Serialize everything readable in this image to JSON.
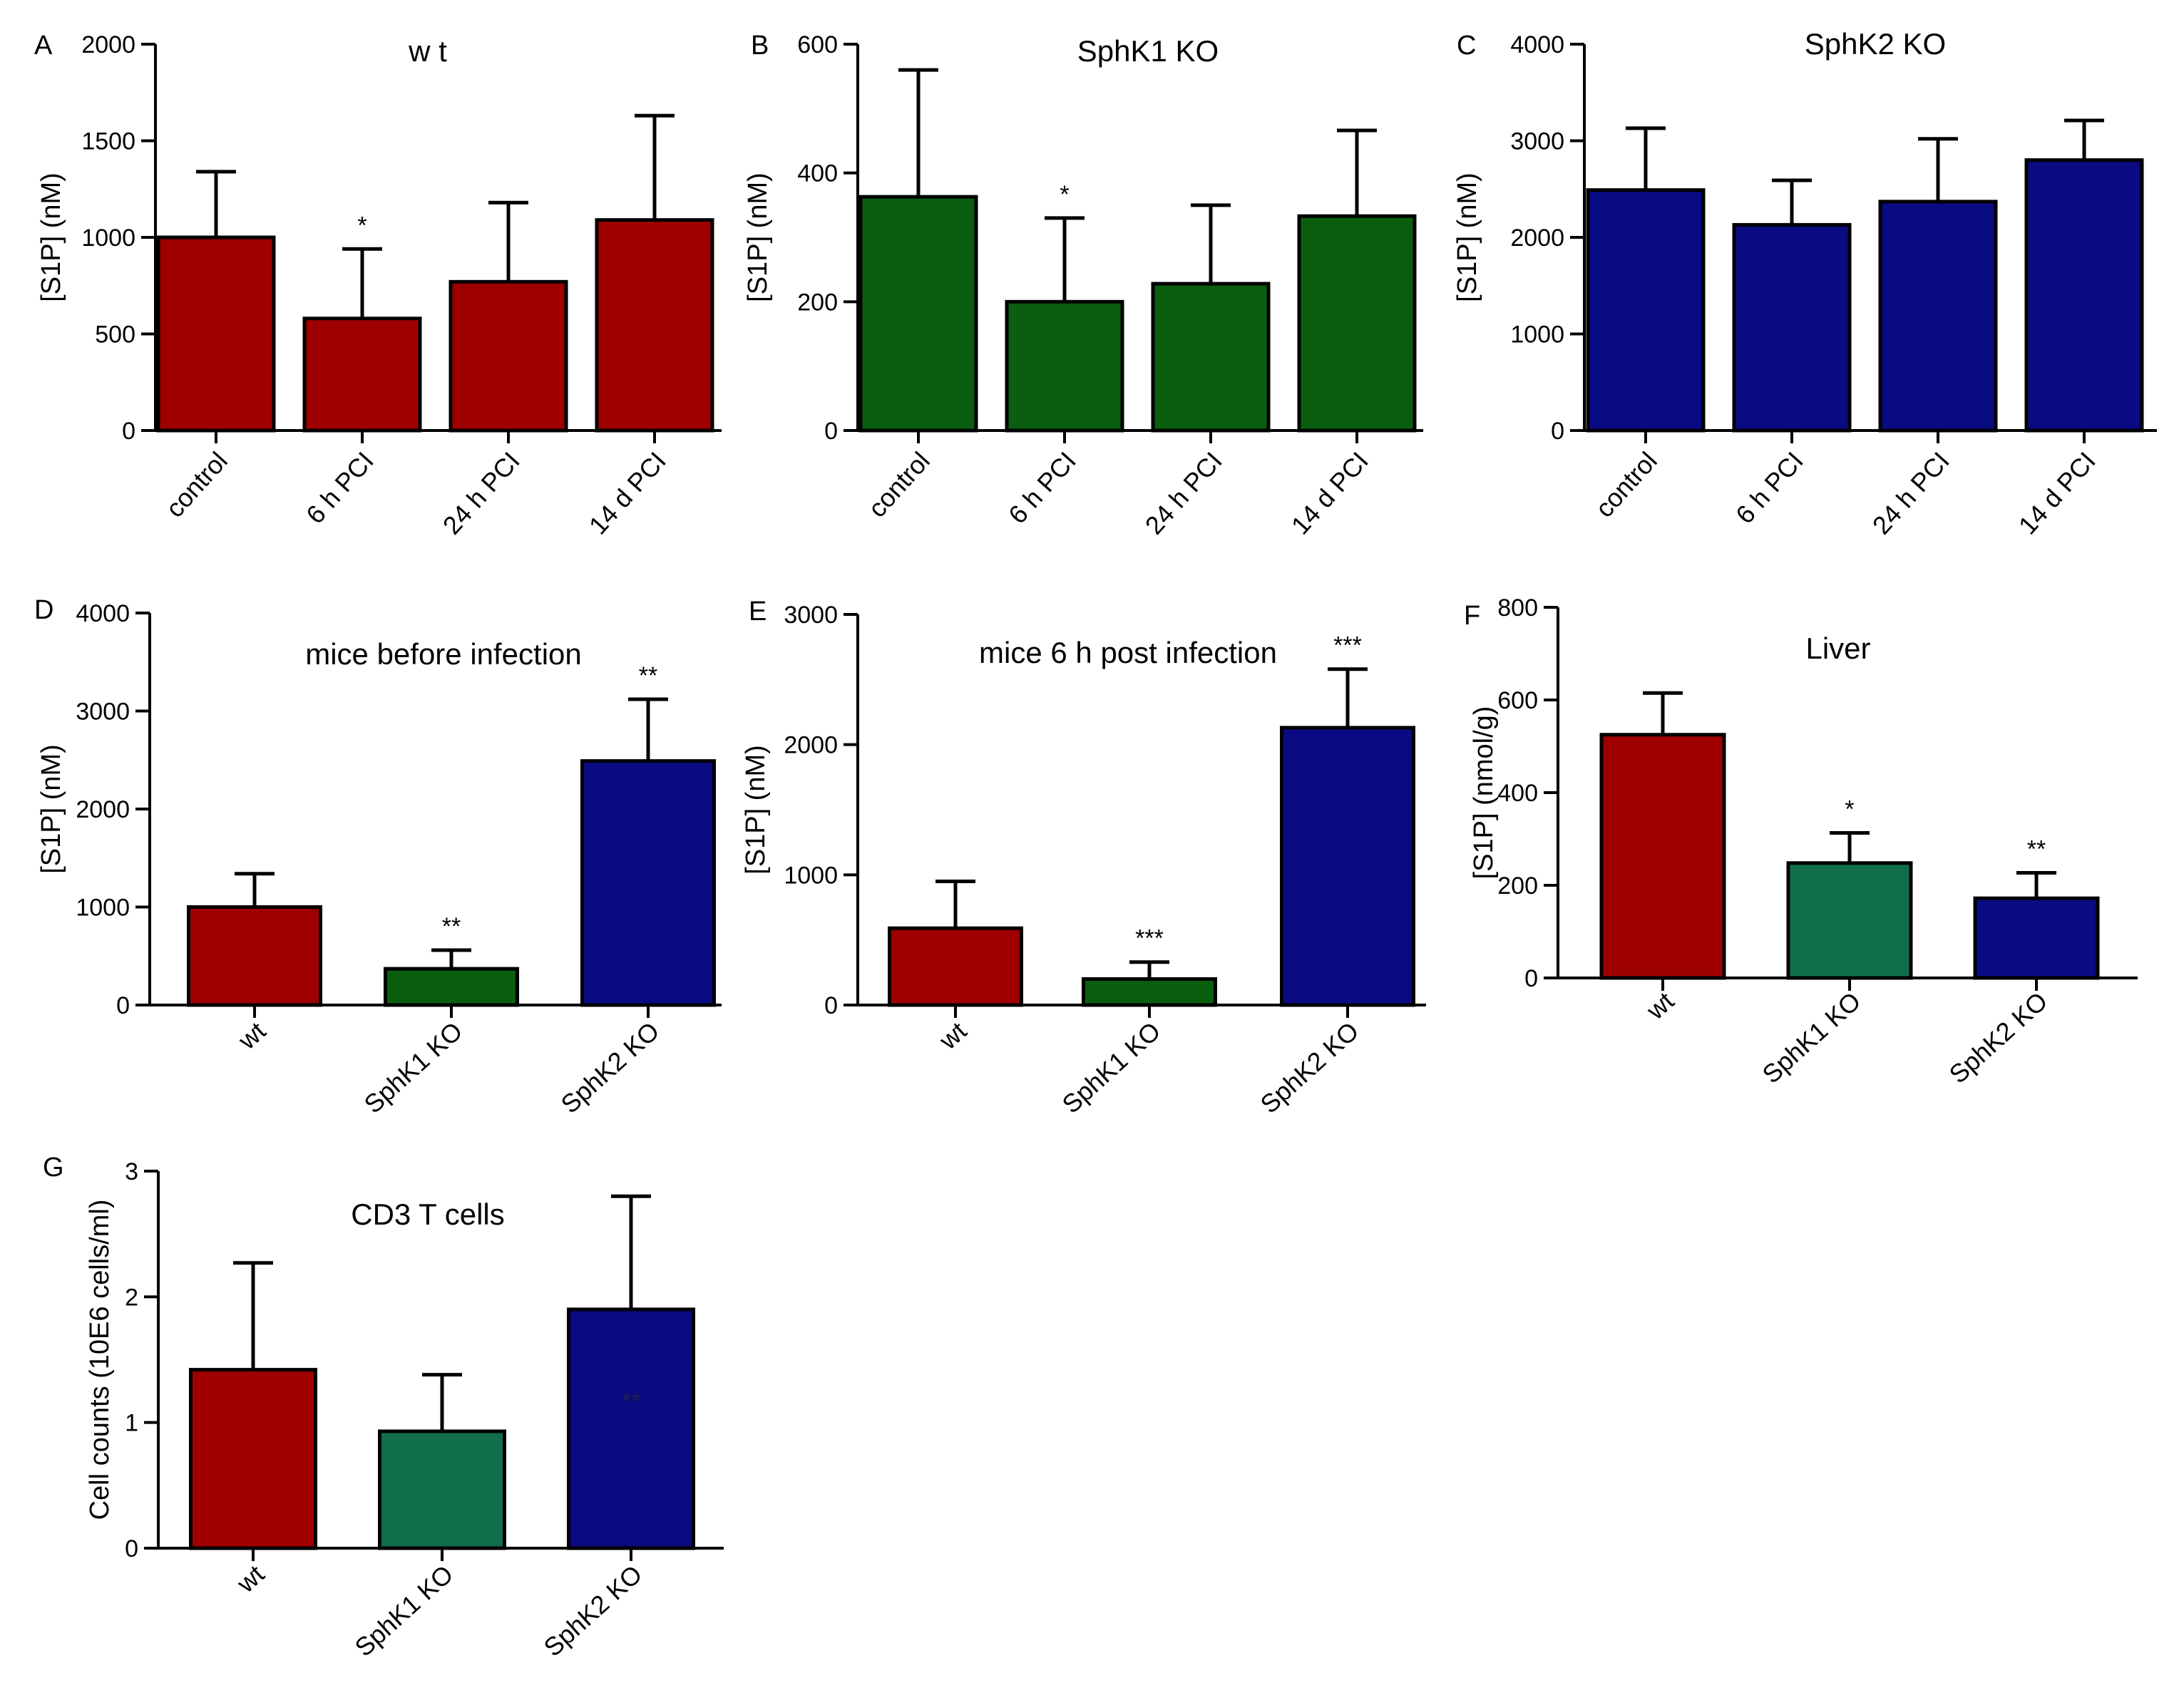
{
  "colors": {
    "wt_red": "#9e0000",
    "sphk1_green_dark": "#0a5e10",
    "sphk1_green_teal": "#106e4a",
    "sphk2_blue": "#0a0a82"
  },
  "chart_data": [
    {
      "id": "A",
      "panel": "A",
      "type": "bar",
      "title": "w t",
      "ylabel": "[S1P] (nM)",
      "xlabel": "",
      "ylim": [
        0,
        2000
      ],
      "yticks": [
        0,
        500,
        1000,
        1500,
        2000
      ],
      "categories": [
        "control",
        "6 h PCI",
        "24 h PCI",
        "14 d PCI"
      ],
      "values": [
        1000,
        580,
        770,
        1090
      ],
      "errors": [
        340,
        360,
        410,
        540
      ],
      "significance": [
        "",
        "*",
        "",
        ""
      ],
      "bar_colors": [
        "#9e0000",
        "#9e0000",
        "#9e0000",
        "#9e0000"
      ]
    },
    {
      "id": "B",
      "panel": "B",
      "type": "bar",
      "title": "SphK1 KO",
      "ylabel": "[S1P] (nM)",
      "xlabel": "",
      "ylim": [
        0,
        600
      ],
      "yticks": [
        0,
        200,
        400,
        600
      ],
      "categories": [
        "control",
        "6 h PCI",
        "24 h PCI",
        "14 d PCI"
      ],
      "values": [
        363,
        200,
        228,
        333
      ],
      "errors": [
        197,
        130,
        122,
        133
      ],
      "significance": [
        "",
        "*",
        "",
        ""
      ],
      "bar_colors": [
        "#0a5e10",
        "#0a5e10",
        "#0a5e10",
        "#0a5e10"
      ]
    },
    {
      "id": "C",
      "panel": "C",
      "type": "bar",
      "title": "SphK2 KO",
      "ylabel": "[S1P] (nM)",
      "xlabel": "",
      "ylim": [
        0,
        4000
      ],
      "yticks": [
        0,
        1000,
        2000,
        3000,
        4000
      ],
      "categories": [
        "control",
        "6 h PCI",
        "24 h PCI",
        "14 d PCI"
      ],
      "values": [
        2490,
        2130,
        2370,
        2800
      ],
      "errors": [
        640,
        460,
        650,
        410
      ],
      "significance": [
        "",
        "",
        "",
        ""
      ],
      "bar_colors": [
        "#0a0a82",
        "#0a0a82",
        "#0a0a82",
        "#0a0a82"
      ]
    },
    {
      "id": "D",
      "panel": "D",
      "type": "bar",
      "title": "mice before infection",
      "ylabel": "[S1P] (nM)",
      "xlabel": "",
      "ylim": [
        0,
        4000
      ],
      "yticks": [
        0,
        1000,
        2000,
        3000,
        4000
      ],
      "categories": [
        "wt",
        "SphK1 KO",
        "SphK2 KO"
      ],
      "values": [
        1000,
        370,
        2490
      ],
      "errors": [
        340,
        190,
        630
      ],
      "significance": [
        "",
        "**",
        "**"
      ],
      "bar_colors": [
        "#9e0000",
        "#0a5e10",
        "#0a0a82"
      ]
    },
    {
      "id": "E",
      "panel": "E",
      "type": "bar",
      "title": "mice 6 h post infection",
      "ylabel": "[S1P] (nM)",
      "xlabel": "",
      "ylim": [
        0,
        3000
      ],
      "yticks": [
        0,
        1000,
        2000,
        3000
      ],
      "categories": [
        "wt",
        "SphK1 KO",
        "SphK2 KO"
      ],
      "values": [
        590,
        200,
        2130
      ],
      "errors": [
        360,
        130,
        450
      ],
      "significance": [
        "",
        "***",
        "***"
      ],
      "bar_colors": [
        "#9e0000",
        "#0a5e10",
        "#0a0a82"
      ]
    },
    {
      "id": "F",
      "panel": "F",
      "type": "bar",
      "title": "Liver",
      "ylabel": "[S1P] (nmol/g)",
      "xlabel": "",
      "ylim": [
        0,
        800
      ],
      "yticks": [
        0,
        200,
        400,
        600,
        800
      ],
      "categories": [
        "wt",
        "SphK1 KO",
        "SphK2 KO"
      ],
      "values": [
        525,
        248,
        172
      ],
      "errors": [
        90,
        65,
        55
      ],
      "significance": [
        "",
        "*",
        "**"
      ],
      "bar_colors": [
        "#9e0000",
        "#106e4a",
        "#0a0a82"
      ]
    },
    {
      "id": "G",
      "panel": "G",
      "type": "bar",
      "title": "CD3 T cells",
      "ylabel": "Cell counts (10E6 cells/ml)",
      "xlabel": "",
      "ylim": [
        0,
        3
      ],
      "yticks": [
        0,
        1,
        2,
        3
      ],
      "categories": [
        "wt",
        "SphK1 KO",
        "SphK2 KO"
      ],
      "values": [
        1.42,
        0.93,
        1.9
      ],
      "errors": [
        0.85,
        0.45,
        0.9
      ],
      "significance": [
        "",
        "",
        "**"
      ],
      "bar_colors": [
        "#9e0000",
        "#106e4a",
        "#0a0a82"
      ]
    }
  ]
}
